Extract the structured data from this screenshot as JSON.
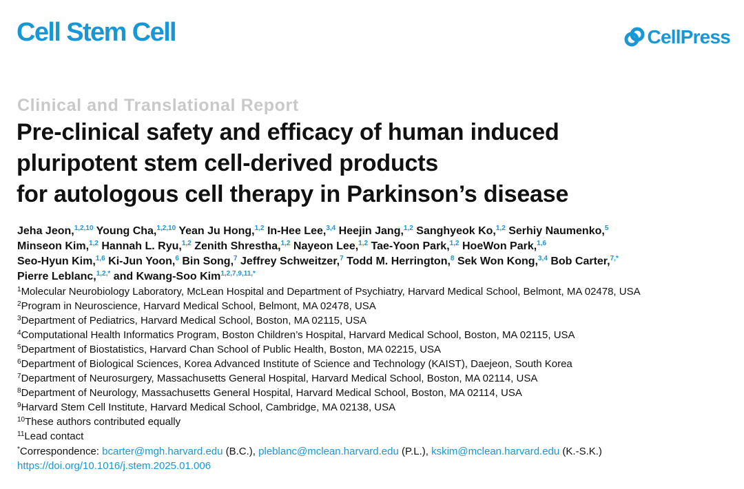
{
  "header": {
    "journal": "Cell Stem Cell",
    "publisher": "CellPress"
  },
  "article_type": "Clinical and Translational Report",
  "title_lines": [
    "Pre-clinical safety and efficacy of human induced",
    "pluripotent stem cell-derived products",
    "for autologous cell therapy in Parkinson’s disease"
  ],
  "author_lines": [
    [
      {
        "name": "Jeha Jeon,",
        "sup": "1,2,10"
      },
      {
        "name": "Young Cha,",
        "sup": "1,2,10"
      },
      {
        "name": "Yean Ju Hong,",
        "sup": "1,2"
      },
      {
        "name": "In-Hee Lee,",
        "sup": "3,4"
      },
      {
        "name": "Heejin Jang,",
        "sup": "1,2"
      },
      {
        "name": "Sanghyeok Ko,",
        "sup": "1,2"
      },
      {
        "name": "Serhiy Naumenko,",
        "sup": "5"
      }
    ],
    [
      {
        "name": "Minseon Kim,",
        "sup": "1,2"
      },
      {
        "name": "Hannah L. Ryu,",
        "sup": "1,2"
      },
      {
        "name": "Zenith Shrestha,",
        "sup": "1,2"
      },
      {
        "name": "Nayeon Lee,",
        "sup": "1,2"
      },
      {
        "name": "Tae-Yoon Park,",
        "sup": "1,2"
      },
      {
        "name": "HoeWon Park,",
        "sup": "1,6"
      }
    ],
    [
      {
        "name": "Seo-Hyun Kim,",
        "sup": "1,6"
      },
      {
        "name": "Ki-Jun Yoon,",
        "sup": "6"
      },
      {
        "name": "Bin Song,",
        "sup": "7"
      },
      {
        "name": "Jeffrey Schweitzer,",
        "sup": "7"
      },
      {
        "name": "Todd M. Herrington,",
        "sup": "8"
      },
      {
        "name": "Sek Won Kong,",
        "sup": "3,4"
      },
      {
        "name": "Bob Carter,",
        "sup": "7,*"
      }
    ],
    [
      {
        "name": "Pierre Leblanc,",
        "sup": "1,2,*"
      },
      {
        "prefix": "and",
        "name": "Kwang-Soo Kim",
        "sup": "1,2,7,9,11,*"
      }
    ]
  ],
  "affiliations": [
    {
      "num": "1",
      "text": "Molecular Neurobiology Laboratory, McLean Hospital and Department of Psychiatry, Harvard Medical School, Belmont, MA 02478, USA"
    },
    {
      "num": "2",
      "text": "Program in Neuroscience, Harvard Medical School, Belmont, MA 02478, USA"
    },
    {
      "num": "3",
      "text": "Department of Pediatrics, Harvard Medical School, Boston, MA 02115, USA"
    },
    {
      "num": "4",
      "text": "Computational Health Informatics Program, Boston Children’s Hospital, Harvard Medical School, Boston, MA 02115, USA"
    },
    {
      "num": "5",
      "text": "Department of Biostatistics, Harvard Chan School of Public Health, Boston, MA 02215, USA"
    },
    {
      "num": "6",
      "text": "Department of Biological Sciences, Korea Advanced Institute of Science and Technology (KAIST), Daejeon, South Korea"
    },
    {
      "num": "7",
      "text": "Department of Neurosurgery, Massachusetts General Hospital, Harvard Medical School, Boston, MA 02114, USA"
    },
    {
      "num": "8",
      "text": "Department of Neurology, Massachusetts General Hospital, Harvard Medical School, Boston, MA 02114, USA"
    },
    {
      "num": "9",
      "text": "Harvard Stem Cell Institute, Harvard Medical School, Cambridge, MA 02138, USA"
    },
    {
      "num": "10",
      "text": "These authors contributed equally"
    },
    {
      "num": "11",
      "text": "Lead contact"
    }
  ],
  "correspondence": {
    "sup": "*",
    "label": "Correspondence:",
    "entries": [
      {
        "email": "bcarter@mgh.harvard.edu",
        "initials": "(B.C.),"
      },
      {
        "email": "pleblanc@mclean.harvard.edu",
        "initials": "(P.L.),"
      },
      {
        "email": "kskim@mclean.harvard.edu",
        "initials": "(K.-S.K.)"
      }
    ]
  },
  "doi": "https://doi.org/10.1016/j.stem.2025.01.006"
}
